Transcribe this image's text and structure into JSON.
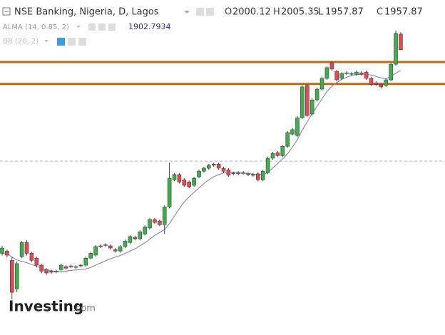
{
  "chart_data": {
    "type": "candlestick",
    "title": "NSE Banking, Nigeria, D, Lagos",
    "ohlc_labels": {
      "open": "O",
      "high": "H",
      "low": "L",
      "close": "C"
    },
    "up_color": "#3cae4a",
    "down_color": "#e5484d",
    "ylim": [
      1190,
      2092
    ],
    "open": [
      1410,
      1416,
      1391,
      1314,
      1401,
      1439,
      1410,
      1397,
      1378,
      1366,
      1362,
      1360,
      1366,
      1374,
      1374,
      1372,
      1376,
      1378,
      1397,
      1405,
      1430,
      1431,
      1430,
      1420,
      1416,
      1428,
      1439,
      1453,
      1449,
      1462,
      1478,
      1501,
      1497,
      1487,
      1535,
      1608,
      1622,
      1608,
      1602,
      1593,
      1616,
      1631,
      1639,
      1647,
      1650,
      1639,
      1635,
      1624,
      1627,
      1626,
      1624,
      1622,
      1624,
      1608,
      1627,
      1666,
      1681,
      1673,
      1698,
      1731,
      1727,
      1775,
      1862,
      1785,
      1823,
      1852,
      1881,
      1923,
      1900,
      1881,
      1894,
      1892,
      1892,
      1896,
      1898,
      1881,
      1869,
      1865,
      1862,
      1877,
      1919,
      2000.12
    ],
    "high": [
      1430,
      1420,
      1401,
      1388,
      1443,
      1445,
      1414,
      1401,
      1382,
      1370,
      1366,
      1366,
      1382,
      1378,
      1380,
      1378,
      1382,
      1401,
      1414,
      1432,
      1434,
      1437,
      1434,
      1424,
      1432,
      1447,
      1459,
      1457,
      1472,
      1485,
      1505,
      1505,
      1501,
      1539,
      1654,
      1626,
      1626,
      1612,
      1606,
      1616,
      1635,
      1643,
      1651,
      1654,
      1654,
      1643,
      1639,
      1630,
      1631,
      1631,
      1628,
      1626,
      1628,
      1635,
      1670,
      1683,
      1685,
      1702,
      1739,
      1747,
      1779,
      1862,
      1866,
      1827,
      1856,
      1885,
      1914,
      1927,
      1904,
      1898,
      1900,
      1898,
      1902,
      1900,
      1902,
      1885,
      1873,
      1869,
      1881,
      1923,
      2010,
      2005.35
    ],
    "low": [
      1404,
      1399,
      1286,
      1305,
      1397,
      1404,
      1386,
      1372,
      1356,
      1352,
      1355,
      1356,
      1362,
      1366,
      1370,
      1368,
      1372,
      1374,
      1393,
      1401,
      1424,
      1427,
      1420,
      1412,
      1412,
      1424,
      1435,
      1445,
      1445,
      1458,
      1474,
      1489,
      1483,
      1462,
      1531,
      1604,
      1598,
      1589,
      1585,
      1589,
      1612,
      1627,
      1635,
      1643,
      1635,
      1627,
      1616,
      1620,
      1620,
      1622,
      1618,
      1616,
      1604,
      1604,
      1623,
      1662,
      1669,
      1669,
      1694,
      1727,
      1723,
      1771,
      1777,
      1781,
      1819,
      1848,
      1877,
      1902,
      1873,
      1877,
      1890,
      1888,
      1888,
      1888,
      1877,
      1861,
      1861,
      1854,
      1858,
      1873,
      1915,
      1957.87
    ],
    "close": [
      1424,
      1405,
      1305,
      1382,
      1439,
      1410,
      1391,
      1378,
      1362,
      1357,
      1359,
      1362,
      1378,
      1370,
      1376,
      1374,
      1378,
      1397,
      1410,
      1428,
      1428,
      1433,
      1424,
      1416,
      1428,
      1443,
      1455,
      1449,
      1468,
      1481,
      1501,
      1493,
      1487,
      1535,
      1612,
      1622,
      1602,
      1593,
      1589,
      1612,
      1631,
      1639,
      1647,
      1650,
      1639,
      1631,
      1620,
      1626,
      1624,
      1627,
      1622,
      1620,
      1608,
      1631,
      1666,
      1679,
      1673,
      1698,
      1735,
      1743,
      1775,
      1858,
      1781,
      1823,
      1852,
      1881,
      1910,
      1906,
      1877,
      1894,
      1896,
      1894,
      1898,
      1892,
      1881,
      1865,
      1865,
      1858,
      1877,
      1919,
      2002,
      1957.87
    ],
    "series": [
      {
        "name": "ALMA (14, 0.85, 2)",
        "color": "#8a88cc",
        "values": [
          1410,
          1408,
          1400,
          1392,
          1388,
          1385,
          1380,
          1375,
          1370,
          1366,
          1363,
          1361,
          1360,
          1362,
          1364,
          1365,
          1366,
          1368,
          1372,
          1378,
          1384,
          1390,
          1395,
          1400,
          1404,
          1410,
          1416,
          1422,
          1430,
          1438,
          1448,
          1458,
          1466,
          1474,
          1490,
          1510,
          1530,
          1548,
          1562,
          1574,
          1586,
          1598,
          1608,
          1616,
          1622,
          1626,
          1628,
          1628,
          1627,
          1626,
          1625,
          1623,
          1621,
          1622,
          1628,
          1640,
          1652,
          1664,
          1678,
          1696,
          1716,
          1742,
          1764,
          1786,
          1806,
          1826,
          1846,
          1860,
          1870,
          1878,
          1884,
          1888,
          1891,
          1892,
          1892,
          1890,
          1886,
          1882,
          1880,
          1886,
          1895,
          1902.7934
        ]
      }
    ],
    "indicators": [
      "BB (20, 2)"
    ],
    "levels": [
      {
        "value": 1925,
        "color": "#c2690f",
        "style": "solid"
      },
      {
        "value": 1866,
        "color": "#c2690f",
        "style": "solid"
      },
      {
        "value": 1658,
        "color": "#b5b5b5",
        "style": "dashed"
      }
    ]
  },
  "logo": {
    "brand": "Investing",
    "suffix": ".com"
  }
}
